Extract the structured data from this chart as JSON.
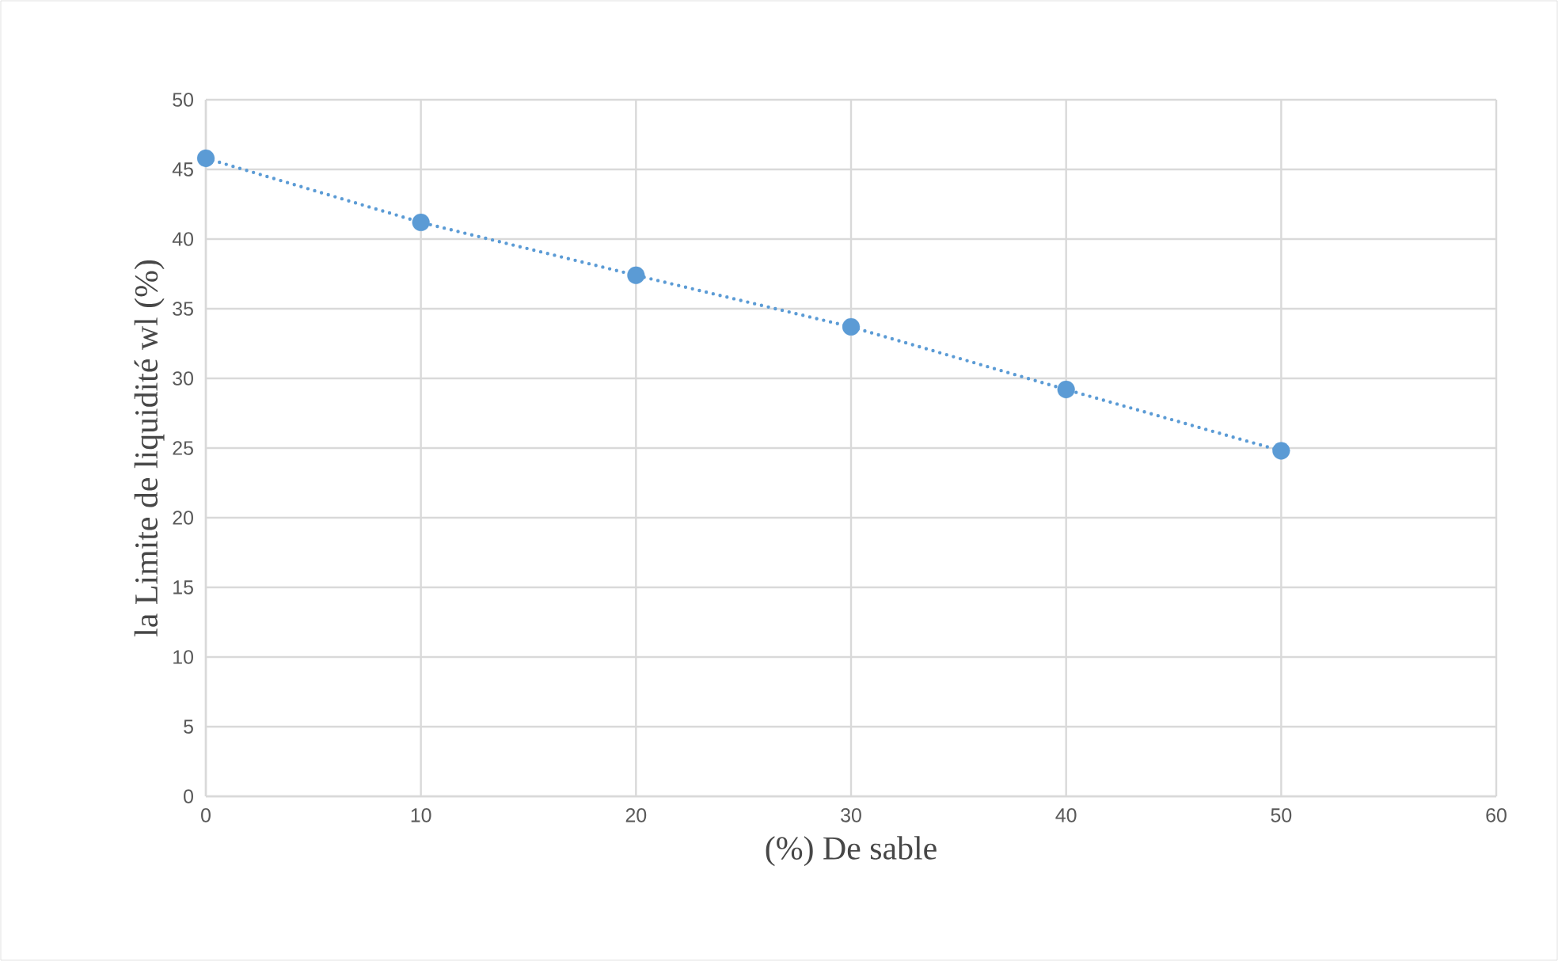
{
  "chart_data": {
    "type": "line",
    "xlabel": "(%) De sable",
    "ylabel": "la Limite de liquidité wl (%)",
    "x": [
      0,
      10,
      20,
      30,
      40,
      50
    ],
    "series": [
      {
        "color": "#5b9bd5",
        "values": [
          45.8,
          41.2,
          37.4,
          33.7,
          29.2,
          24.8
        ]
      }
    ],
    "xlim": [
      0,
      60
    ],
    "xticks": [
      0,
      10,
      20,
      30,
      40,
      50,
      60
    ],
    "ylim": [
      0,
      50
    ],
    "yticks": [
      0,
      5,
      10,
      15,
      20,
      25,
      30,
      35,
      40,
      45,
      50
    ],
    "grid": true,
    "marker": "circle",
    "line_style": "dotted"
  }
}
